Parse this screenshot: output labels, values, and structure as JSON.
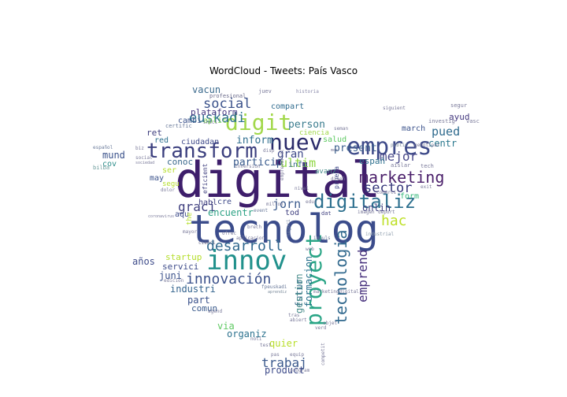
{
  "title": "WordCloud - Tweets: País Vasco",
  "words": [
    {
      "text": "digital",
      "color": "#3e1e6b"
    },
    {
      "text": "tecnolog",
      "color": "#3b4c8b"
    },
    {
      "text": "innov",
      "color": "#21918c"
    },
    {
      "text": "empres",
      "color": "#3e4a89"
    },
    {
      "text": "transform",
      "color": "#3b3f7e"
    },
    {
      "text": "nuev",
      "color": "#2a2a6a"
    },
    {
      "text": "digit",
      "color": "#a2d84b"
    },
    {
      "text": "digitaliz",
      "color": "#2c6f8e"
    },
    {
      "text": "proyect",
      "color": "#2aa586"
    },
    {
      "text": "marketing",
      "color": "#4a1f6a"
    },
    {
      "text": "desarroll",
      "color": "#31688e"
    },
    {
      "text": "innovación",
      "color": "#3b518b"
    },
    {
      "text": "social",
      "color": "#3b528b"
    },
    {
      "text": "euskadi",
      "color": "#2d718e"
    },
    {
      "text": "tecnologia",
      "color": "#31698e"
    },
    {
      "text": "emprend",
      "color": "#46307c"
    },
    {
      "text": "sector",
      "color": "#35367a"
    },
    {
      "text": "graci",
      "color": "#3f3f7f"
    },
    {
      "text": "mejor",
      "color": "#4a4a8a"
    },
    {
      "text": "jorn",
      "color": "#3a5a8c"
    },
    {
      "text": "ultim",
      "color": "#8fd744"
    },
    {
      "text": "hac",
      "color": "#bddf26"
    },
    {
      "text": "pued",
      "color": "#2f6b8e"
    },
    {
      "text": "trabaj",
      "color": "#3c5a8d"
    },
    {
      "text": "person",
      "color": "#3a7c8e"
    },
    {
      "text": "gran",
      "color": "#3f4a8a"
    },
    {
      "text": "inform",
      "color": "#2e6e8e"
    },
    {
      "text": "present",
      "color": "#3a5e8c"
    },
    {
      "text": "particip",
      "color": "#37598c"
    },
    {
      "text": "formacion",
      "color": "#2c728e"
    },
    {
      "text": "futur",
      "color": "#3d6e8e"
    },
    {
      "text": "gestion",
      "color": "#4a8e8c"
    },
    {
      "text": "encuentr",
      "color": "#2fa386"
    },
    {
      "text": "startup",
      "color": "#b5de2b"
    },
    {
      "text": "juni",
      "color": "#3b528b"
    },
    {
      "text": "industri",
      "color": "#33638d"
    },
    {
      "text": "servici",
      "color": "#3e4c8a"
    },
    {
      "text": "años",
      "color": "#3e4c8a"
    },
    {
      "text": "part",
      "color": "#3b528b"
    },
    {
      "text": "comun",
      "color": "#3a5a8c"
    },
    {
      "text": "organiz",
      "color": "#2c728e"
    },
    {
      "text": "via",
      "color": "#5ec962"
    },
    {
      "text": "quier",
      "color": "#b8de29"
    },
    {
      "text": "product",
      "color": "#3e4c8a"
    },
    {
      "text": "onlin",
      "color": "#3f3f7f"
    },
    {
      "text": "españ",
      "color": "#2d708e"
    },
    {
      "text": "centr",
      "color": "#2a788e"
    },
    {
      "text": "form",
      "color": "#35b779"
    },
    {
      "text": "march",
      "color": "#3b528b"
    },
    {
      "text": "ayud",
      "color": "#44397f"
    },
    {
      "text": "salud",
      "color": "#5ec962"
    },
    {
      "text": "info",
      "color": "#3a6b8e"
    },
    {
      "text": "vacun",
      "color": "#3b6a8d"
    },
    {
      "text": "plataform",
      "color": "#453580"
    },
    {
      "text": "compart",
      "color": "#2f6b8e"
    },
    {
      "text": "aplic",
      "color": "#7ad151"
    },
    {
      "text": "cambi",
      "color": "#3b528b"
    },
    {
      "text": "ciudadan",
      "color": "#3f4a8a"
    },
    {
      "text": "ret",
      "color": "#3f3f7f"
    },
    {
      "text": "red",
      "color": "#2d708e"
    },
    {
      "text": "mund",
      "color": "#3b528b"
    },
    {
      "text": "cov",
      "color": "#2d8e8a"
    },
    {
      "text": "conoc",
      "color": "#3b6a8d"
    },
    {
      "text": "ser",
      "color": "#b5de2b"
    },
    {
      "text": "may",
      "color": "#3b528b"
    },
    {
      "text": "aqu",
      "color": "#3e4c8a"
    },
    {
      "text": "habl",
      "color": "#3f3f7f"
    },
    {
      "text": "cre",
      "color": "#3e4a89"
    },
    {
      "text": "tod",
      "color": "#3f3f7f"
    },
    {
      "text": "avanz",
      "color": "#4a8e8c"
    },
    {
      "text": "ciencia",
      "color": "#a2d84b"
    },
    {
      "text": "the",
      "color": "#b5de2b"
    },
    {
      "text": "segu",
      "color": "#b5de2b"
    },
    {
      "text": "prueba",
      "color": "#3f4a8a"
    },
    {
      "text": "juev",
      "color": "#7a7a9a"
    },
    {
      "text": "profesional",
      "color": "#6a6a8a"
    },
    {
      "text": "certific",
      "color": "#6a7a9a"
    },
    {
      "text": "inici",
      "color": "#7a7a9a"
    },
    {
      "text": "español",
      "color": "#6a7a9a"
    },
    {
      "text": "bilba",
      "color": "#6a9a9a"
    },
    {
      "text": "dolor",
      "color": "#7a7a9a"
    },
    {
      "text": "mayor",
      "color": "#7a7a9a"
    },
    {
      "text": "cienci",
      "color": "#6a6a8a"
    },
    {
      "text": "tras",
      "color": "#7a7a9a"
    },
    {
      "text": "verd",
      "color": "#7a7a9a"
    },
    {
      "text": "public",
      "color": "#7a8a9a"
    },
    {
      "text": "aislar",
      "color": "#7a7a9a"
    },
    {
      "text": "tech",
      "color": "#7a7a9a"
    },
    {
      "text": "exit",
      "color": "#7a7a9a"
    },
    {
      "text": "comerci",
      "color": "#7a7a9a"
    },
    {
      "text": "imagen",
      "color": "#7a7a9a"
    },
    {
      "text": "seman",
      "color": "#7a7a9a"
    },
    {
      "text": "investig",
      "color": "#7a7a9a"
    },
    {
      "text": "segur",
      "color": "#7a7a9a"
    },
    {
      "text": "vasc",
      "color": "#7a7a9a"
    },
    {
      "text": "siguient",
      "color": "#7a7a9a"
    },
    {
      "text": "historia",
      "color": "#8a8aaa"
    },
    {
      "text": "genotipar",
      "color": "#7a7a9a"
    },
    {
      "text": "edicion",
      "color": "#7a7a9a"
    },
    {
      "text": "fpeuskadi",
      "color": "#6a7a9a"
    },
    {
      "text": "aprendiz",
      "color": "#7a8a9a"
    },
    {
      "text": "marketingdigital",
      "color": "#7a7a9a"
    },
    {
      "text": "impuls",
      "color": "#6a7a9a"
    },
    {
      "text": "industrial",
      "color": "#8a9aaa"
    },
    {
      "text": "negoci",
      "color": "#6a7a9a"
    },
    {
      "text": "inversion",
      "color": "#7a7a9a"
    },
    {
      "text": "event",
      "color": "#6a7a9a"
    },
    {
      "text": "millon",
      "color": "#7a7a9a"
    },
    {
      "text": "educ",
      "color": "#7a7a9a"
    },
    {
      "text": "dat",
      "color": "#3f3f7f"
    },
    {
      "text": "disp",
      "color": "#7a7a9a"
    },
    {
      "text": "pas",
      "color": "#7a7a9a"
    },
    {
      "text": "equip",
      "color": "#7a7a9a"
    },
    {
      "text": "noti",
      "color": "#7a7a9a"
    },
    {
      "text": "test",
      "color": "#7a7a9a"
    },
    {
      "text": "program",
      "color": "#7a7a9a"
    },
    {
      "text": "sociedad",
      "color": "#7a7a9a"
    },
    {
      "text": "social",
      "color": "#7a7a9a"
    },
    {
      "text": "coronavirus",
      "color": "#7a7a9a"
    },
    {
      "text": "biz",
      "color": "#7a7a9a"
    },
    {
      "text": "brech",
      "color": "#7a7a9a"
    },
    {
      "text": "eficient",
      "color": "#3f3f7f"
    },
    {
      "text": "web",
      "color": "#7a7a9a"
    },
    {
      "text": "abiert",
      "color": "#7a7a9a"
    },
    {
      "text": "nivel",
      "color": "#7a7a9a"
    },
    {
      "text": "objet",
      "color": "#7a7a9a"
    },
    {
      "text": "competit",
      "color": "#7a7a9a"
    },
    {
      "text": "empresarial",
      "color": "#7a7a9a"
    },
    {
      "text": "diseñ",
      "color": "#7a7a9a"
    },
    {
      "text": "mes",
      "color": "#7a7a9a"
    },
    {
      "text": "deport",
      "color": "#7a7a9a"
    },
    {
      "text": "ofrec",
      "color": "#7a7a9a"
    },
    {
      "text": "agend",
      "color": "#7a7a9a"
    },
    {
      "text": "aplicacion",
      "color": "#7a7a9a"
    }
  ]
}
